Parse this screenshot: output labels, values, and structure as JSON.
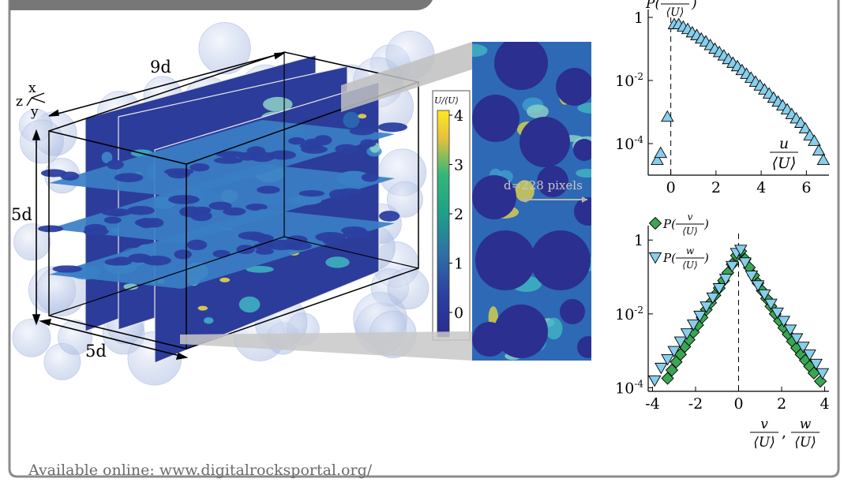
{
  "theme": {
    "frame": "#8c8c8c",
    "tab": "#777777",
    "sky": "#87ceeb",
    "green": "#3aa651",
    "navy": "#2a2a8c",
    "sphere": "#c9d6ee"
  },
  "caption": {
    "text": "Available online: www.digitalrocksportal.org/"
  },
  "main": {
    "axes_icon": {
      "x": "x",
      "y": "y",
      "z": "z"
    },
    "dims": {
      "length": "9d",
      "height": "5d",
      "depth": "5d"
    },
    "colorbar": {
      "label": "U/⟨U⟩",
      "ticks": [
        "4",
        "3",
        "2",
        "1",
        "0"
      ],
      "colors": [
        "#fde725",
        "#e8c13c",
        "#35b779",
        "#1fa187",
        "#2e6ea6",
        "#2b3fa0",
        "#282b8c"
      ]
    },
    "zoom": {
      "scale_label": "d=228 pixels"
    }
  },
  "chart_data": [
    {
      "type": "scatter",
      "ylog": true,
      "ylabel": "P(u/⟨U⟩)",
      "xlabel": "u/⟨U⟩",
      "xlim": [
        -1,
        7
      ],
      "ylim": [
        1e-05,
        1
      ],
      "xticks": [
        "0",
        "2",
        "4",
        "6"
      ],
      "xtick_values": [
        0,
        2,
        4,
        6
      ],
      "yticks": [
        "1",
        "10-2",
        "10-4"
      ],
      "ytick_values": [
        1,
        0.01,
        0.0001
      ],
      "vline": 0,
      "series": [
        {
          "marker": "triangle-up",
          "color": "#87ceeb",
          "x": [
            -0.6,
            -0.45,
            -0.15,
            0.15,
            0.35,
            0.55,
            0.75,
            0.95,
            1.15,
            1.35,
            1.55,
            1.75,
            1.95,
            2.15,
            2.35,
            2.55,
            2.75,
            2.95,
            3.15,
            3.35,
            3.55,
            3.75,
            3.95,
            4.15,
            4.35,
            4.55,
            4.75,
            4.95,
            5.15,
            5.35,
            5.55,
            5.75,
            5.95,
            6.15,
            6.35,
            6.55,
            6.75
          ],
          "y": [
            3e-05,
            5e-05,
            0.0007,
            0.6,
            0.6,
            0.5,
            0.42,
            0.33,
            0.27,
            0.21,
            0.17,
            0.13,
            0.1,
            0.078,
            0.061,
            0.047,
            0.036,
            0.028,
            0.021,
            0.016,
            0.012,
            0.009,
            0.0068,
            0.0051,
            0.0038,
            0.0028,
            0.0021,
            0.0016,
            0.0012,
            0.00085,
            0.00062,
            0.00045,
            0.0003,
            0.00018,
            0.00012,
            6e-05,
            3e-05
          ]
        }
      ]
    },
    {
      "type": "scatter",
      "ylog": true,
      "xlabel": "v/⟨U⟩, w/⟨U⟩",
      "xlim": [
        -4.2,
        4.2
      ],
      "ylim": [
        8e-05,
        1.5
      ],
      "xticks": [
        "-4",
        "-2",
        "0",
        "2",
        "4"
      ],
      "xtick_values": [
        -4,
        -2,
        0,
        2,
        4
      ],
      "yticks": [
        "1",
        "10-2",
        "10-4"
      ],
      "ytick_values": [
        1,
        0.01,
        0.0001
      ],
      "vline": 0,
      "legend": [
        "P(v/⟨U⟩)",
        "P(w/⟨U⟩)"
      ],
      "series": [
        {
          "name": "P(v/⟨U⟩)",
          "marker": "diamond",
          "color": "#3aa651",
          "x": [
            -3.3,
            -3.1,
            -2.9,
            -2.7,
            -2.5,
            -2.3,
            -2.1,
            -1.9,
            -1.7,
            -1.5,
            -1.3,
            -1.1,
            -0.9,
            -0.7,
            -0.5,
            -0.3,
            -0.1,
            0.1,
            0.3,
            0.5,
            0.7,
            0.9,
            1.1,
            1.3,
            1.5,
            1.7,
            1.9,
            2.1,
            2.3,
            2.5,
            2.7,
            2.9,
            3.1,
            3.3,
            3.5,
            3.8
          ],
          "y": [
            0.00018,
            0.0003,
            0.0005,
            0.0008,
            0.0013,
            0.002,
            0.0032,
            0.005,
            0.008,
            0.013,
            0.02,
            0.032,
            0.05,
            0.08,
            0.13,
            0.22,
            0.38,
            0.5,
            0.3,
            0.18,
            0.11,
            0.068,
            0.042,
            0.026,
            0.016,
            0.01,
            0.0065,
            0.0042,
            0.0028,
            0.0018,
            0.0012,
            0.0008,
            0.00055,
            0.00038,
            0.00025,
            0.00015
          ]
        },
        {
          "name": "P(w/⟨U⟩)",
          "marker": "triangle-down",
          "color": "#87ceeb",
          "x": [
            -3.9,
            -3.6,
            -3.3,
            -3.0,
            -2.7,
            -2.4,
            -2.1,
            -1.8,
            -1.5,
            -1.2,
            -0.9,
            -0.6,
            -0.3,
            -0.1,
            0.1,
            0.3,
            0.6,
            0.9,
            1.2,
            1.5,
            1.8,
            2.1,
            2.4,
            2.7,
            3.0,
            3.3,
            3.6,
            3.9
          ],
          "y": [
            0.00016,
            0.00035,
            0.0006,
            0.001,
            0.0018,
            0.003,
            0.0052,
            0.009,
            0.016,
            0.028,
            0.05,
            0.09,
            0.2,
            0.45,
            0.55,
            0.25,
            0.11,
            0.06,
            0.034,
            0.019,
            0.011,
            0.0065,
            0.0038,
            0.0022,
            0.0013,
            0.0008,
            0.00045,
            0.00025
          ]
        }
      ]
    }
  ]
}
